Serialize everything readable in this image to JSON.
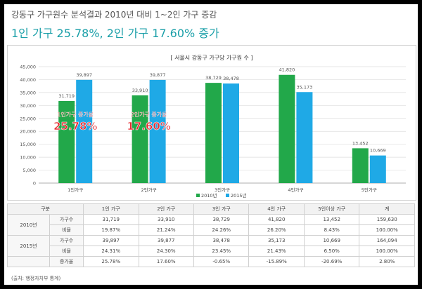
{
  "heading": "강동구 가구원수 분석결과 2010년 대비 1~2인 가구 증감",
  "subheading": "1인 가구 25.78%, 2인 가구 17.60% 증가",
  "chart_data": {
    "type": "bar",
    "title": "[ 서울시 강동구 가구당 가구원 수 ]",
    "categories": [
      "1인가구",
      "2인가구",
      "3인가구",
      "4인가구",
      "5인가구"
    ],
    "series": [
      {
        "name": "2010년",
        "values": [
          31719,
          33910,
          38729,
          41820,
          13452
        ],
        "labels": [
          "31,719",
          "33,910",
          "38,729",
          "41,820",
          "13,452"
        ],
        "color": "#22a84a"
      },
      {
        "name": "2015년",
        "values": [
          39897,
          39877,
          38478,
          35173,
          10669
        ],
        "labels": [
          "39,897",
          "39,877",
          "38,478",
          "35,173",
          "10,669"
        ],
        "color": "#1fa9e6"
      }
    ],
    "ylim": [
      0,
      45000
    ],
    "yticks": [
      "0",
      "5,000",
      "10,000",
      "15,000",
      "20,000",
      "25,000",
      "30,000",
      "35,000",
      "40,000",
      "45,000"
    ],
    "grid": true,
    "legend": "bottom",
    "annotations": [
      {
        "category": 0,
        "label": "1인가구 증가율",
        "value": "25.78%"
      },
      {
        "category": 1,
        "label": "2인가구 증가율",
        "value": "17.60%"
      }
    ]
  },
  "table": {
    "headers": [
      "구분",
      "",
      "1인 가구",
      "2인 가구",
      "3인 가구",
      "4인 가구",
      "5인이상 가구",
      "계"
    ],
    "rows": [
      {
        "year": "2010년",
        "label": "가구수",
        "values": [
          "31,719",
          "33,910",
          "38,729",
          "41,820",
          "13,452",
          "159,630"
        ]
      },
      {
        "label": "비율",
        "values": [
          "19.87%",
          "21.24%",
          "24.26%",
          "26.20%",
          "8.43%",
          "100.00%"
        ]
      },
      {
        "year": "2015년",
        "label": "가구수",
        "values": [
          "39,897",
          "39,877",
          "38,478",
          "35,173",
          "10,669",
          "164,094"
        ]
      },
      {
        "label": "비율",
        "values": [
          "24.31%",
          "24.30%",
          "23.45%",
          "21.43%",
          "6.50%",
          "100.00%"
        ]
      },
      {
        "label": "증가율",
        "values": [
          "25.78%",
          "17.60%",
          "-0.65%",
          "-15.89%",
          "-20.69%",
          "2.80%"
        ]
      }
    ]
  },
  "source": "(출처: 행정자치부 통계)"
}
